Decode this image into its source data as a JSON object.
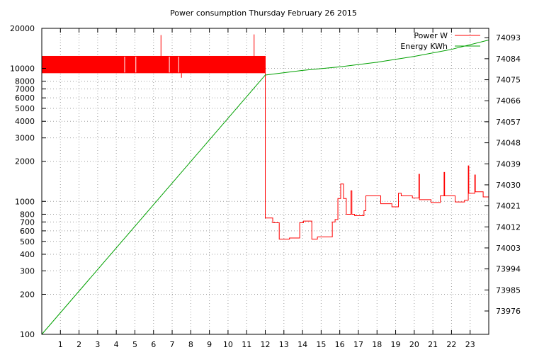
{
  "chart_data": {
    "type": "line",
    "title": "Power consumption Thursday February 26 2015",
    "xlabel": "",
    "ylabel": "",
    "xlim": [
      0,
      24
    ],
    "x_ticks": [
      1,
      2,
      3,
      4,
      5,
      6,
      7,
      8,
      9,
      10,
      11,
      12,
      13,
      14,
      15,
      16,
      17,
      18,
      19,
      20,
      21,
      22,
      23
    ],
    "y_scale": "log",
    "ylim": [
      100,
      20000
    ],
    "y_ticks": [
      100,
      200,
      300,
      400,
      500,
      600,
      700,
      800,
      1000,
      2000,
      3000,
      4000,
      5000,
      6000,
      7000,
      8000,
      10000,
      20000
    ],
    "y2lim": [
      73966,
      74097
    ],
    "y2_ticks": [
      73976,
      73985,
      73994,
      74003,
      74012,
      74021,
      74030,
      74039,
      74048,
      74057,
      74066,
      74075,
      74084,
      74093
    ],
    "grid": true,
    "legend_position": "top-right",
    "series": [
      {
        "name": "Power W",
        "axis": "left",
        "color": "#ff0000",
        "band": {
          "x": [
            0,
            12
          ],
          "y_low": 9200,
          "y_high": 12400
        },
        "spikes": [
          {
            "x": 6.4,
            "y": 17800
          },
          {
            "x": 11.4,
            "y": 18000
          },
          {
            "x": 7.5,
            "y": 8500
          }
        ],
        "points": [
          [
            12.0,
            12400
          ],
          [
            12.0,
            750
          ],
          [
            12.4,
            750
          ],
          [
            12.4,
            690
          ],
          [
            12.75,
            690
          ],
          [
            12.75,
            520
          ],
          [
            13.3,
            520
          ],
          [
            13.3,
            530
          ],
          [
            13.85,
            530
          ],
          [
            13.85,
            690
          ],
          [
            14.05,
            690
          ],
          [
            14.05,
            710
          ],
          [
            14.5,
            710
          ],
          [
            14.5,
            520
          ],
          [
            14.8,
            520
          ],
          [
            14.8,
            540
          ],
          [
            15.6,
            540
          ],
          [
            15.6,
            700
          ],
          [
            15.75,
            700
          ],
          [
            15.75,
            730
          ],
          [
            15.9,
            730
          ],
          [
            15.9,
            1050
          ],
          [
            16.05,
            1050
          ],
          [
            16.05,
            1350
          ],
          [
            16.2,
            1350
          ],
          [
            16.2,
            1050
          ],
          [
            16.35,
            1050
          ],
          [
            16.35,
            800
          ],
          [
            16.6,
            800
          ],
          [
            16.6,
            1200
          ],
          [
            16.65,
            1200
          ],
          [
            16.65,
            800
          ],
          [
            16.8,
            800
          ],
          [
            16.8,
            780
          ],
          [
            17.3,
            780
          ],
          [
            17.3,
            850
          ],
          [
            17.4,
            850
          ],
          [
            17.4,
            1100
          ],
          [
            18.2,
            1100
          ],
          [
            18.2,
            960
          ],
          [
            18.8,
            960
          ],
          [
            18.8,
            910
          ],
          [
            19.15,
            910
          ],
          [
            19.15,
            1150
          ],
          [
            19.3,
            1150
          ],
          [
            19.3,
            1100
          ],
          [
            19.9,
            1100
          ],
          [
            19.9,
            1060
          ],
          [
            20.25,
            1060
          ],
          [
            20.25,
            1600
          ],
          [
            20.28,
            1600
          ],
          [
            20.28,
            1030
          ],
          [
            20.9,
            1030
          ],
          [
            20.9,
            980
          ],
          [
            21.4,
            980
          ],
          [
            21.4,
            1100
          ],
          [
            21.6,
            1100
          ],
          [
            21.6,
            1650
          ],
          [
            21.63,
            1650
          ],
          [
            21.63,
            1100
          ],
          [
            22.2,
            1100
          ],
          [
            22.2,
            990
          ],
          [
            22.7,
            990
          ],
          [
            22.7,
            1020
          ],
          [
            22.9,
            1020
          ],
          [
            22.9,
            1850
          ],
          [
            22.93,
            1850
          ],
          [
            22.93,
            1150
          ],
          [
            23.25,
            1150
          ],
          [
            23.25,
            1580
          ],
          [
            23.28,
            1580
          ],
          [
            23.28,
            1180
          ],
          [
            23.7,
            1180
          ],
          [
            23.7,
            1080
          ],
          [
            24.0,
            1080
          ]
        ]
      },
      {
        "name": "Energy KWh",
        "axis": "right",
        "color": "#00a000",
        "points": [
          [
            0,
            73966
          ],
          [
            12,
            74077
          ],
          [
            14,
            74079
          ],
          [
            16,
            74080.5
          ],
          [
            18,
            74082.5
          ],
          [
            20,
            74085
          ],
          [
            22,
            74088
          ],
          [
            24,
            74092
          ]
        ]
      }
    ]
  }
}
